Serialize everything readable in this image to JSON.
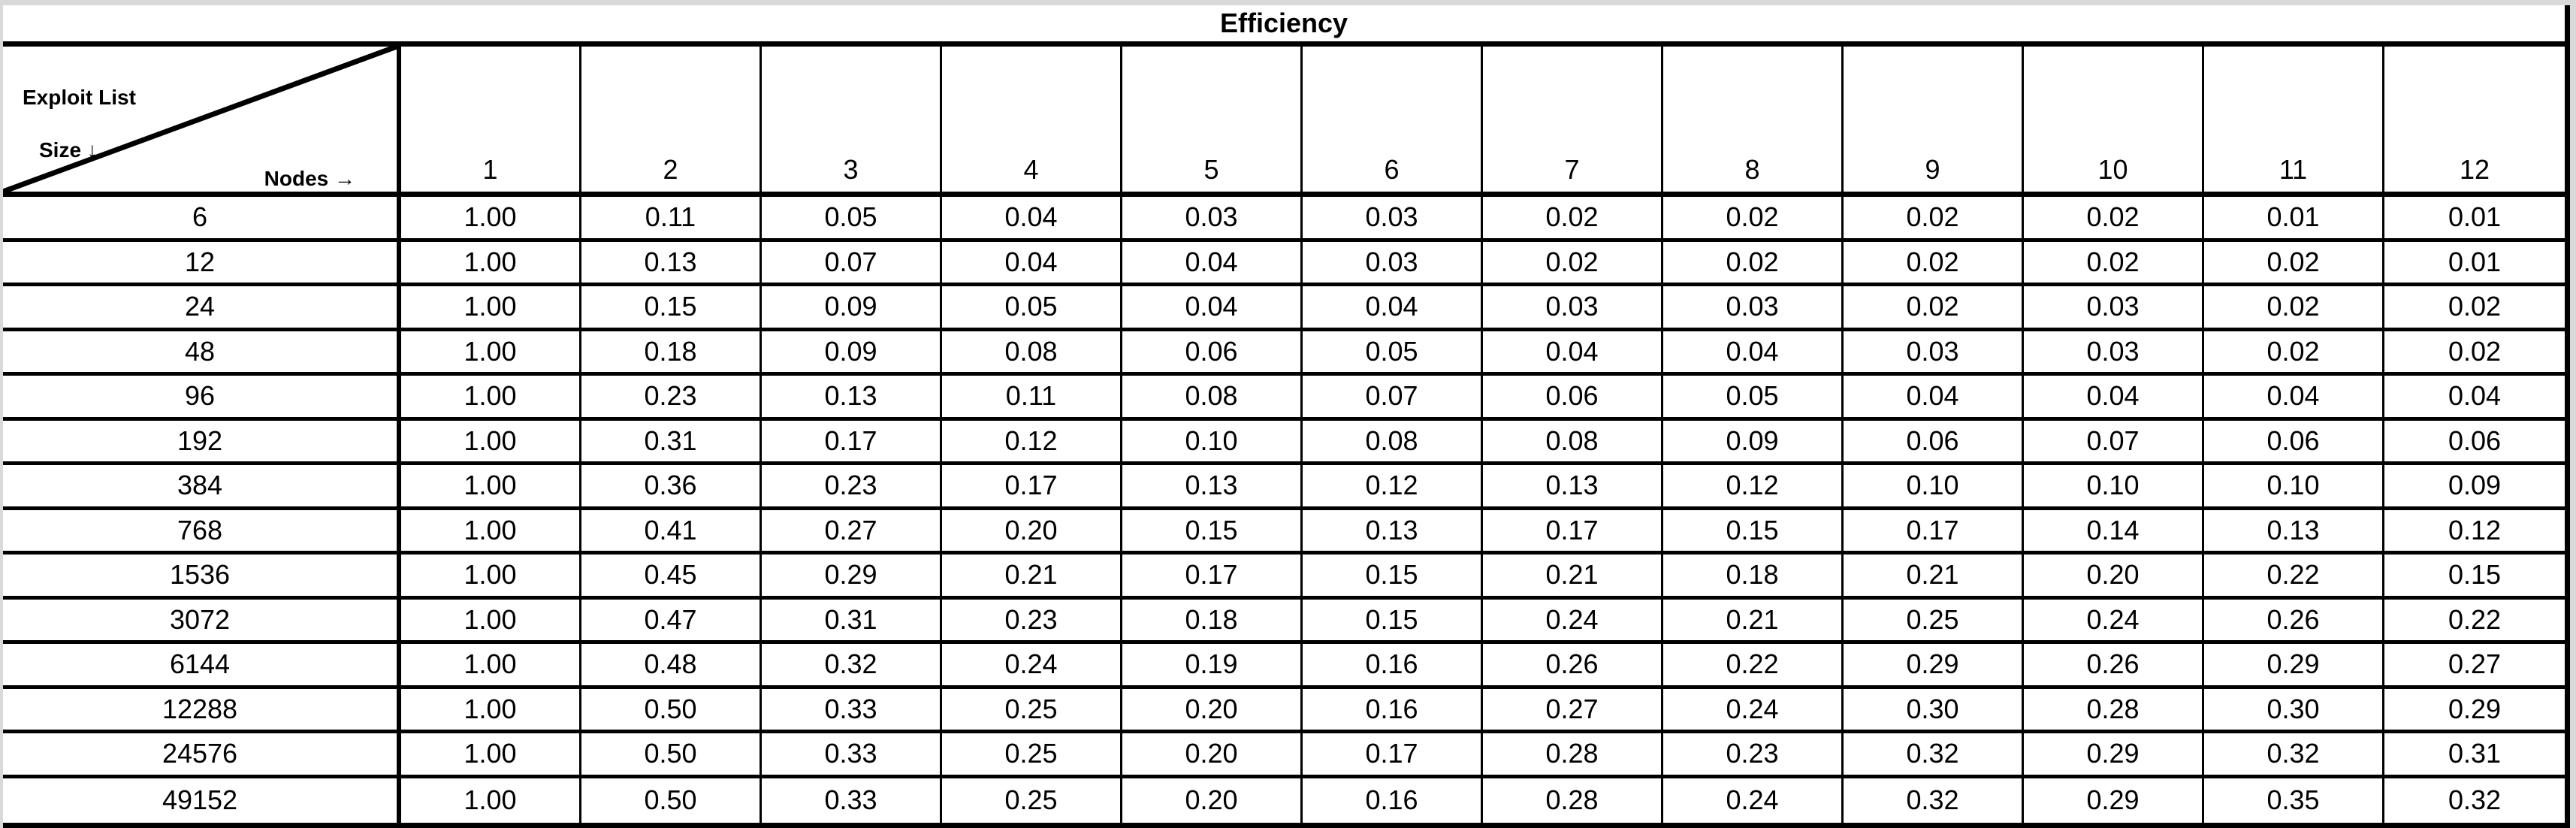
{
  "page": {
    "title": "Efficiency"
  },
  "corner": {
    "line1": "Exploit List",
    "line2": "Size ↓",
    "nodes": "Nodes →"
  },
  "colors": {
    "border": "#000000",
    "table_background": "#ffffff",
    "page_background": "#d9d9d9",
    "text": "#000000"
  },
  "chart_data": {
    "type": "table",
    "title": "Efficiency",
    "row_axis_label": "Exploit List Size ↓",
    "col_axis_label": "Nodes →",
    "columns": [
      "1",
      "2",
      "3",
      "4",
      "5",
      "6",
      "7",
      "8",
      "9",
      "10",
      "11",
      "12"
    ],
    "rows": [
      {
        "size": "6",
        "values": [
          "1.00",
          "0.11",
          "0.05",
          "0.04",
          "0.03",
          "0.03",
          "0.02",
          "0.02",
          "0.02",
          "0.02",
          "0.01",
          "0.01"
        ]
      },
      {
        "size": "12",
        "values": [
          "1.00",
          "0.13",
          "0.07",
          "0.04",
          "0.04",
          "0.03",
          "0.02",
          "0.02",
          "0.02",
          "0.02",
          "0.02",
          "0.01"
        ]
      },
      {
        "size": "24",
        "values": [
          "1.00",
          "0.15",
          "0.09",
          "0.05",
          "0.04",
          "0.04",
          "0.03",
          "0.03",
          "0.02",
          "0.03",
          "0.02",
          "0.02"
        ]
      },
      {
        "size": "48",
        "values": [
          "1.00",
          "0.18",
          "0.09",
          "0.08",
          "0.06",
          "0.05",
          "0.04",
          "0.04",
          "0.03",
          "0.03",
          "0.02",
          "0.02"
        ]
      },
      {
        "size": "96",
        "values": [
          "1.00",
          "0.23",
          "0.13",
          "0.11",
          "0.08",
          "0.07",
          "0.06",
          "0.05",
          "0.04",
          "0.04",
          "0.04",
          "0.04"
        ]
      },
      {
        "size": "192",
        "values": [
          "1.00",
          "0.31",
          "0.17",
          "0.12",
          "0.10",
          "0.08",
          "0.08",
          "0.09",
          "0.06",
          "0.07",
          "0.06",
          "0.06"
        ]
      },
      {
        "size": "384",
        "values": [
          "1.00",
          "0.36",
          "0.23",
          "0.17",
          "0.13",
          "0.12",
          "0.13",
          "0.12",
          "0.10",
          "0.10",
          "0.10",
          "0.09"
        ]
      },
      {
        "size": "768",
        "values": [
          "1.00",
          "0.41",
          "0.27",
          "0.20",
          "0.15",
          "0.13",
          "0.17",
          "0.15",
          "0.17",
          "0.14",
          "0.13",
          "0.12"
        ]
      },
      {
        "size": "1536",
        "values": [
          "1.00",
          "0.45",
          "0.29",
          "0.21",
          "0.17",
          "0.15",
          "0.21",
          "0.18",
          "0.21",
          "0.20",
          "0.22",
          "0.15"
        ]
      },
      {
        "size": "3072",
        "values": [
          "1.00",
          "0.47",
          "0.31",
          "0.23",
          "0.18",
          "0.15",
          "0.24",
          "0.21",
          "0.25",
          "0.24",
          "0.26",
          "0.22"
        ]
      },
      {
        "size": "6144",
        "values": [
          "1.00",
          "0.48",
          "0.32",
          "0.24",
          "0.19",
          "0.16",
          "0.26",
          "0.22",
          "0.29",
          "0.26",
          "0.29",
          "0.27"
        ]
      },
      {
        "size": "12288",
        "values": [
          "1.00",
          "0.50",
          "0.33",
          "0.25",
          "0.20",
          "0.16",
          "0.27",
          "0.24",
          "0.30",
          "0.28",
          "0.30",
          "0.29"
        ]
      },
      {
        "size": "24576",
        "values": [
          "1.00",
          "0.50",
          "0.33",
          "0.25",
          "0.20",
          "0.17",
          "0.28",
          "0.23",
          "0.32",
          "0.29",
          "0.32",
          "0.31"
        ]
      },
      {
        "size": "49152",
        "values": [
          "1.00",
          "0.50",
          "0.33",
          "0.25",
          "0.20",
          "0.16",
          "0.28",
          "0.24",
          "0.32",
          "0.29",
          "0.35",
          "0.32"
        ]
      }
    ]
  }
}
